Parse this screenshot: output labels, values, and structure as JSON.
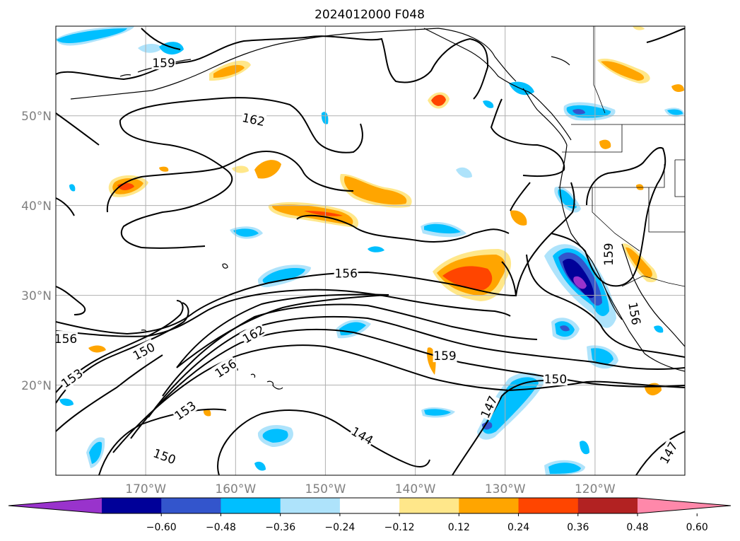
{
  "title": "2024012000 F048",
  "lat_labels": [
    {
      "lat": 50,
      "text": "50°N"
    },
    {
      "lat": 40,
      "text": "40°N"
    },
    {
      "lat": 30,
      "text": "30°N"
    },
    {
      "lat": 20,
      "text": "20°N"
    }
  ],
  "lon_labels": [
    {
      "lon": -170,
      "text": "170°W"
    },
    {
      "lon": -160,
      "text": "160°W"
    },
    {
      "lon": -150,
      "text": "150°W"
    },
    {
      "lon": -140,
      "text": "140°W"
    },
    {
      "lon": -130,
      "text": "130°W"
    },
    {
      "lon": -120,
      "text": "120°W"
    }
  ],
  "map_extent": {
    "lon_min": -180,
    "lon_max": -110,
    "lat_min": 10,
    "lat_max": 60
  },
  "colorbar": {
    "colors": [
      "#9933cc",
      "#000099",
      "#3355cc",
      "#00bfff",
      "#aee3fb",
      "#ffffff",
      "#ffe78a",
      "#ffa500",
      "#ff4500",
      "#b22222",
      "#ff88aa"
    ],
    "tick_labels": [
      "−0.60",
      "−0.48",
      "−0.36",
      "−0.24",
      "−0.12",
      "0.12",
      "0.24",
      "0.36",
      "0.48",
      "0.60"
    ]
  },
  "contour_labels": [
    {
      "text": "159",
      "lon": -168.0,
      "lat": 55.9,
      "rot": 0
    },
    {
      "text": "162",
      "lon": -158.0,
      "lat": 49.6,
      "rot": 12
    },
    {
      "text": "156",
      "lon": -147.7,
      "lat": 32.5,
      "rot": 0
    },
    {
      "text": "159",
      "lon": -136.7,
      "lat": 23.3,
      "rot": 0
    },
    {
      "text": "156",
      "lon": -178.9,
      "lat": 25.2,
      "rot": 0
    },
    {
      "text": "150",
      "lon": -170.2,
      "lat": 23.8,
      "rot": -28
    },
    {
      "text": "162",
      "lon": -158.0,
      "lat": 25.7,
      "rot": -30
    },
    {
      "text": "156",
      "lon": -161.1,
      "lat": 21.9,
      "rot": -33
    },
    {
      "text": "153",
      "lon": -178.2,
      "lat": 20.8,
      "rot": -35
    },
    {
      "text": "153",
      "lon": -165.6,
      "lat": 17.2,
      "rot": -35
    },
    {
      "text": "150",
      "lon": -167.9,
      "lat": 12.1,
      "rot": 20
    },
    {
      "text": "144",
      "lon": -145.9,
      "lat": 14.4,
      "rot": 30
    },
    {
      "text": "147",
      "lon": -131.8,
      "lat": 17.6,
      "rot": -65
    },
    {
      "text": "150",
      "lon": -124.4,
      "lat": 20.7,
      "rot": 0
    },
    {
      "text": "159",
      "lon": -118.5,
      "lat": 34.6,
      "rot": -90
    },
    {
      "text": "156",
      "lon": -115.6,
      "lat": 28.0,
      "rot": 80
    },
    {
      "text": "147",
      "lon": -111.8,
      "lat": 12.5,
      "rot": -60
    }
  ]
}
